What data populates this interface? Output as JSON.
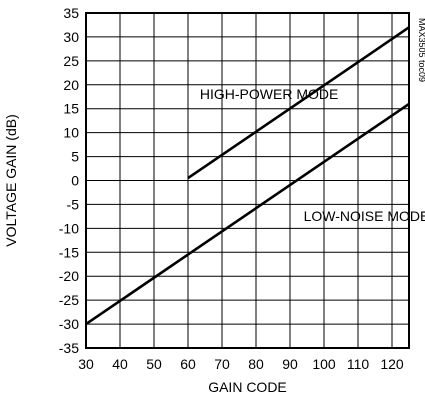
{
  "chart_data": {
    "type": "line",
    "xlabel": "GAIN CODE",
    "ylabel": "VOLTAGE GAIN (dB)",
    "xlim": [
      30,
      125
    ],
    "ylim": [
      -35,
      35
    ],
    "x_ticks": [
      30,
      40,
      50,
      60,
      70,
      80,
      90,
      100,
      110,
      120
    ],
    "y_ticks": [
      35,
      30,
      25,
      20,
      15,
      10,
      5,
      0,
      -5,
      -10,
      -15,
      -20,
      -25,
      -30,
      -35
    ],
    "grid": true,
    "series": [
      {
        "name": "HIGH-POWER MODE",
        "x": [
          60,
          125
        ],
        "y": [
          0.5,
          32
        ]
      },
      {
        "name": "LOW-NOISE MODE",
        "x": [
          30,
          125
        ],
        "y": [
          -30,
          16
        ]
      }
    ],
    "annotations": [
      {
        "text": "HIGH-POWER MODE",
        "x": 63.5,
        "y": 17
      },
      {
        "text": "LOW-NOISE MODE",
        "x": 94,
        "y": -8.5
      }
    ],
    "side_label": "MAX3505 toc09"
  }
}
